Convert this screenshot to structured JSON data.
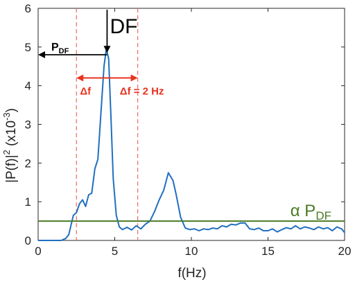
{
  "chart_data": {
    "type": "line",
    "xlim": [
      0,
      20
    ],
    "ylim": [
      0,
      6
    ],
    "xticks": [
      0,
      5,
      10,
      15,
      20
    ],
    "yticks": [
      0,
      1,
      2,
      3,
      4,
      5,
      6
    ],
    "xlabel": "f(Hz)",
    "ylabel": {
      "base": "|P(f)|",
      "sup": "2",
      "mid": " (x10",
      "sup2": "-3",
      "tail": ")"
    },
    "grid": false,
    "series": [
      {
        "color": "#1f6fbf",
        "x": [
          0,
          0.5,
          1.0,
          1.5,
          1.8,
          2.0,
          2.3,
          2.5,
          2.7,
          2.9,
          3.1,
          3.3,
          3.5,
          3.7,
          3.9,
          4.1,
          4.3,
          4.45,
          4.6,
          4.75,
          4.9,
          5.1,
          5.3,
          5.5,
          5.8,
          6.1,
          6.4,
          6.7,
          7.0,
          7.3,
          7.6,
          7.9,
          8.2,
          8.5,
          8.8,
          9.0,
          9.3,
          9.6,
          9.9,
          10.2,
          10.5,
          10.8,
          11.1,
          11.4,
          11.7,
          12.0,
          12.3,
          12.6,
          12.9,
          13.2,
          13.5,
          13.8,
          14.1,
          14.4,
          14.7,
          15.0,
          15.3,
          15.6,
          15.9,
          16.2,
          16.5,
          16.8,
          17.1,
          17.4,
          17.7,
          18.0,
          18.3,
          18.6,
          18.9,
          19.2,
          19.5,
          19.8,
          20.0
        ],
        "y": [
          0.0,
          0.0,
          0.0,
          0.0,
          0.05,
          0.15,
          0.65,
          0.72,
          0.95,
          1.05,
          0.88,
          1.18,
          1.22,
          1.85,
          2.1,
          3.3,
          4.5,
          4.95,
          4.7,
          3.2,
          1.6,
          0.65,
          0.35,
          0.28,
          0.34,
          0.27,
          0.38,
          0.3,
          0.42,
          0.5,
          0.75,
          1.05,
          1.3,
          1.75,
          1.55,
          1.2,
          0.6,
          0.32,
          0.28,
          0.3,
          0.25,
          0.3,
          0.28,
          0.32,
          0.3,
          0.38,
          0.35,
          0.42,
          0.4,
          0.45,
          0.45,
          0.3,
          0.28,
          0.32,
          0.25,
          0.25,
          0.3,
          0.22,
          0.28,
          0.33,
          0.3,
          0.38,
          0.3,
          0.35,
          0.32,
          0.28,
          0.35,
          0.3,
          0.33,
          0.25,
          0.35,
          0.3,
          0.2
        ]
      }
    ],
    "threshold": {
      "y": 0.5,
      "color": "#4a7a25",
      "label_main": "α P",
      "label_sub": "DF"
    },
    "vlines": {
      "x": [
        2.5,
        6.5
      ],
      "color": "#f06a5e"
    },
    "annotations": {
      "df": {
        "label": "DF",
        "x": 4.5,
        "y": 4.85
      },
      "pdf": {
        "label_main": "P",
        "label_sub": "DF",
        "from_x": 4.5,
        "to_x": 0,
        "y": 4.8
      },
      "delta": {
        "from_x": 2.5,
        "to_x": 6.5,
        "y": 4.2,
        "left_label": "Δf",
        "right_label": "Δf = 2 Hz",
        "color": "#e8321e"
      }
    }
  }
}
